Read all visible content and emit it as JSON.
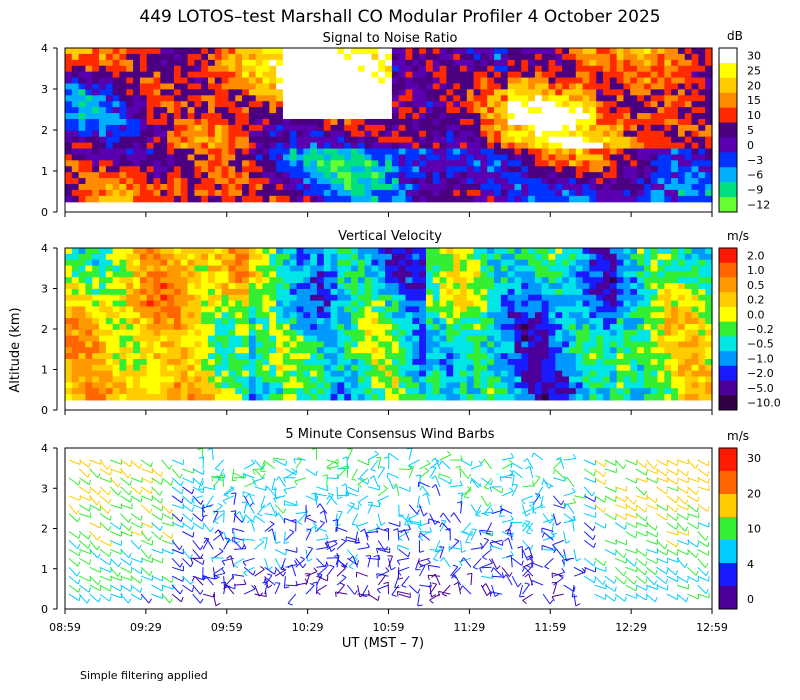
{
  "title": "449 LOTOS–test Marshall CO Modular Profiler  4 October 2025",
  "ylabel": "Altitude (km)",
  "xlabel": "UT  (MST – 7)",
  "footer": "Simple filtering applied",
  "x_ticks": [
    "08:59",
    "09:29",
    "09:59",
    "10:29",
    "10:59",
    "11:29",
    "11:59",
    "12:29",
    "12:59"
  ],
  "y_ticks": [
    "0",
    "1",
    "2",
    "3",
    "4"
  ],
  "chart_data": [
    {
      "type": "heatmap",
      "title": "Signal to Noise Ratio",
      "xlabel": "UT  (MST – 7)",
      "ylabel": "Altitude (km)",
      "ylim": [
        0,
        4
      ],
      "xlim": [
        "08:59",
        "12:59"
      ],
      "colorbar": {
        "unit": "dB",
        "labels": [
          "30",
          "25",
          "20",
          "15",
          "10",
          "5",
          "0",
          "−3",
          "−6",
          "−9",
          "−12"
        ],
        "colors": [
          "#ffffff",
          "#ffff00",
          "#ffcc00",
          "#ff8c00",
          "#ff2a00",
          "#4a0080",
          "#5a00b0",
          "#0033ff",
          "#00b0ff",
          "#00e080",
          "#66ff33"
        ]
      }
    },
    {
      "type": "heatmap",
      "title": "Vertical Velocity",
      "xlabel": "UT  (MST – 7)",
      "ylabel": "Altitude (km)",
      "ylim": [
        0,
        4
      ],
      "xlim": [
        "08:59",
        "12:59"
      ],
      "colorbar": {
        "unit": "m/s",
        "labels": [
          "2.0",
          "1.0",
          "0.5",
          "0.2",
          "0.0",
          "−0.2",
          "−0.5",
          "−1.0",
          "−2.0",
          "−5.0",
          "−10.0"
        ],
        "colors": [
          "#ff1a00",
          "#ff6600",
          "#ff9900",
          "#ffcc00",
          "#ffff00",
          "#33ee33",
          "#00e6e6",
          "#0099ff",
          "#1a1aff",
          "#4b0099",
          "#330044"
        ]
      }
    },
    {
      "type": "scatter",
      "title": "5 Minute Consensus Wind Barbs",
      "xlabel": "UT  (MST – 7)",
      "ylabel": "Altitude (km)",
      "ylim": [
        0,
        4
      ],
      "xlim": [
        "08:59",
        "12:59"
      ],
      "colorbar": {
        "unit": "m/s",
        "labels": [
          "30",
          "20",
          "10",
          "4",
          "0"
        ],
        "colors": [
          "#ff1a00",
          "#ff6600",
          "#ffcc00",
          "#33ee33",
          "#00ccff",
          "#1a1aff",
          "#4b0099"
        ]
      }
    }
  ]
}
